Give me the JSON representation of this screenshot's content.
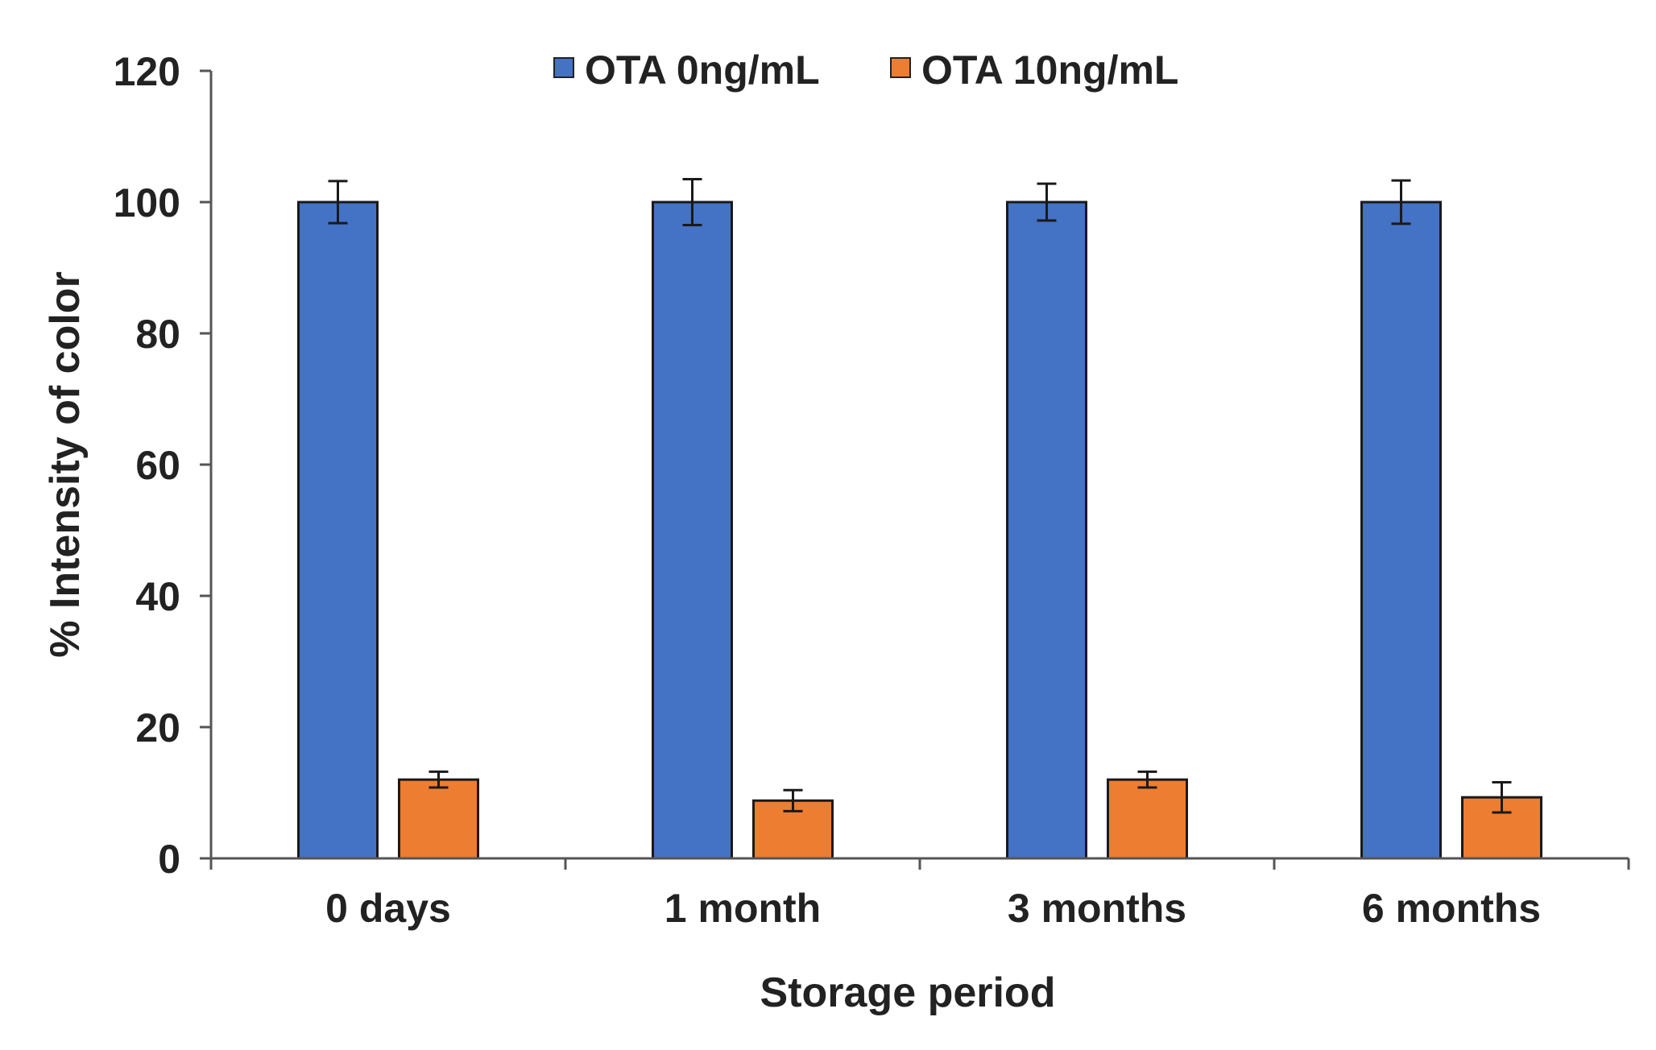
{
  "chart_data": {
    "type": "bar",
    "title": "",
    "xlabel": "Storage period",
    "ylabel": "% Intensity of color",
    "ylim": [
      0,
      120
    ],
    "yticks": [
      0,
      20,
      40,
      60,
      80,
      100,
      120
    ],
    "ytick_labels": [
      "0",
      "20",
      "40",
      "60",
      "80",
      "100",
      "120"
    ],
    "categories": [
      "0 days",
      "1 month",
      "3 months",
      "6 months"
    ],
    "grid": false,
    "legend_position": "top-center",
    "series": [
      {
        "name": "OTA 0ng/mL",
        "color": "#4472c4",
        "values": [
          100,
          100,
          100,
          100
        ],
        "errors": [
          3.2,
          3.5,
          2.8,
          3.3
        ]
      },
      {
        "name": "OTA 10ng/mL",
        "color": "#ed7d31",
        "values": [
          12,
          8.8,
          12,
          9.3
        ],
        "errors": [
          1.2,
          1.6,
          1.2,
          2.3
        ]
      }
    ]
  }
}
